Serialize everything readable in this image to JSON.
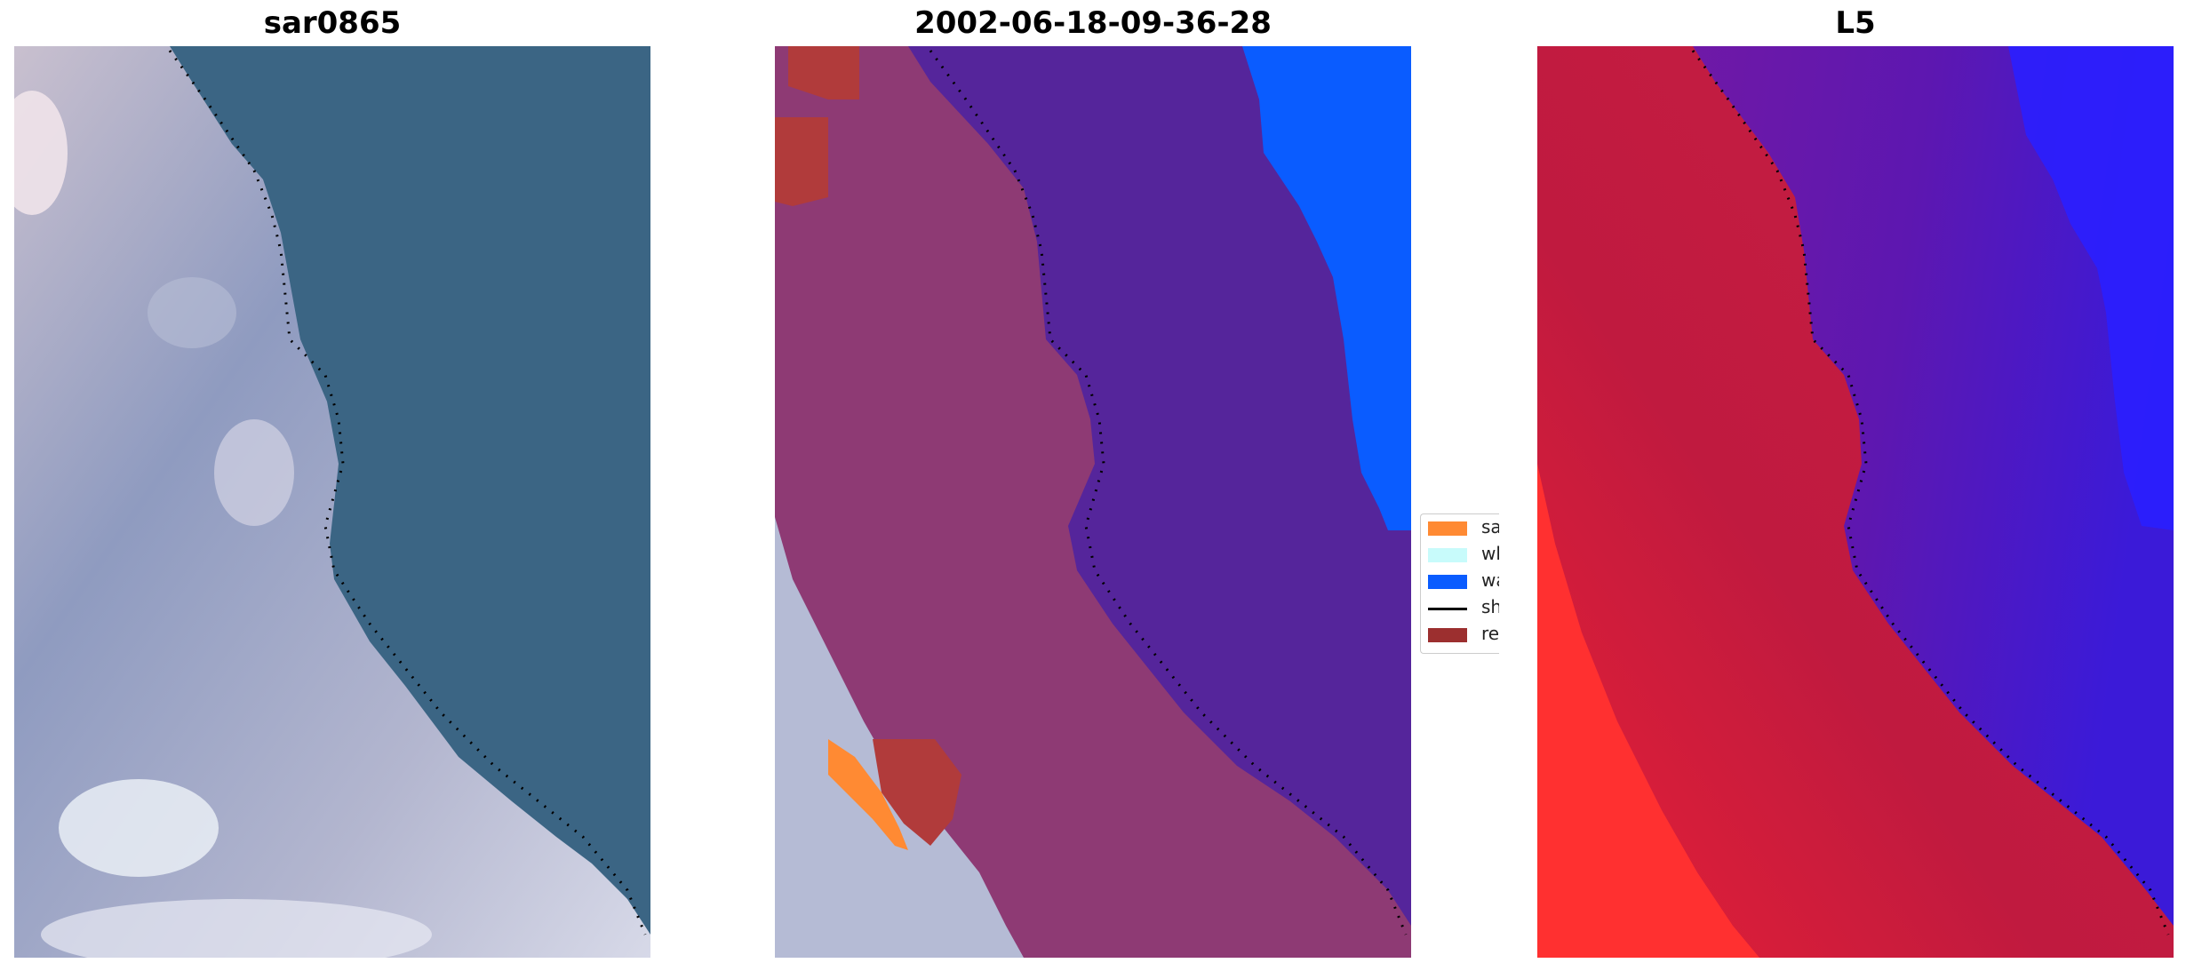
{
  "panels": [
    {
      "title": "sar0865"
    },
    {
      "title": "2002-06-18-09-36-28"
    },
    {
      "title": "L5"
    }
  ],
  "legend": {
    "items": [
      {
        "label": "sand",
        "color": "#ff8a33",
        "kind": "patch"
      },
      {
        "label": "whitewater",
        "color": "#c8fbfb",
        "kind": "patch"
      },
      {
        "label": "water",
        "color": "#0a5cff",
        "kind": "patch"
      },
      {
        "label": "shoreline",
        "color": "#000000",
        "kind": "line"
      },
      {
        "label": "reference",
        "color": "#9c2f2f",
        "kind": "patch"
      }
    ]
  },
  "colors": {
    "sea_rgb": "#3b6584",
    "land_rgb": "#9ea6c4",
    "class_land": "#8e3a74",
    "class_water_overlay": "#55259b",
    "class_water": "#0a5cff",
    "prob_land": "#c71f45",
    "prob_water": "#6a1aa8",
    "prob_high": "#ff2d2d",
    "prob_deep": "#2a1fff"
  }
}
